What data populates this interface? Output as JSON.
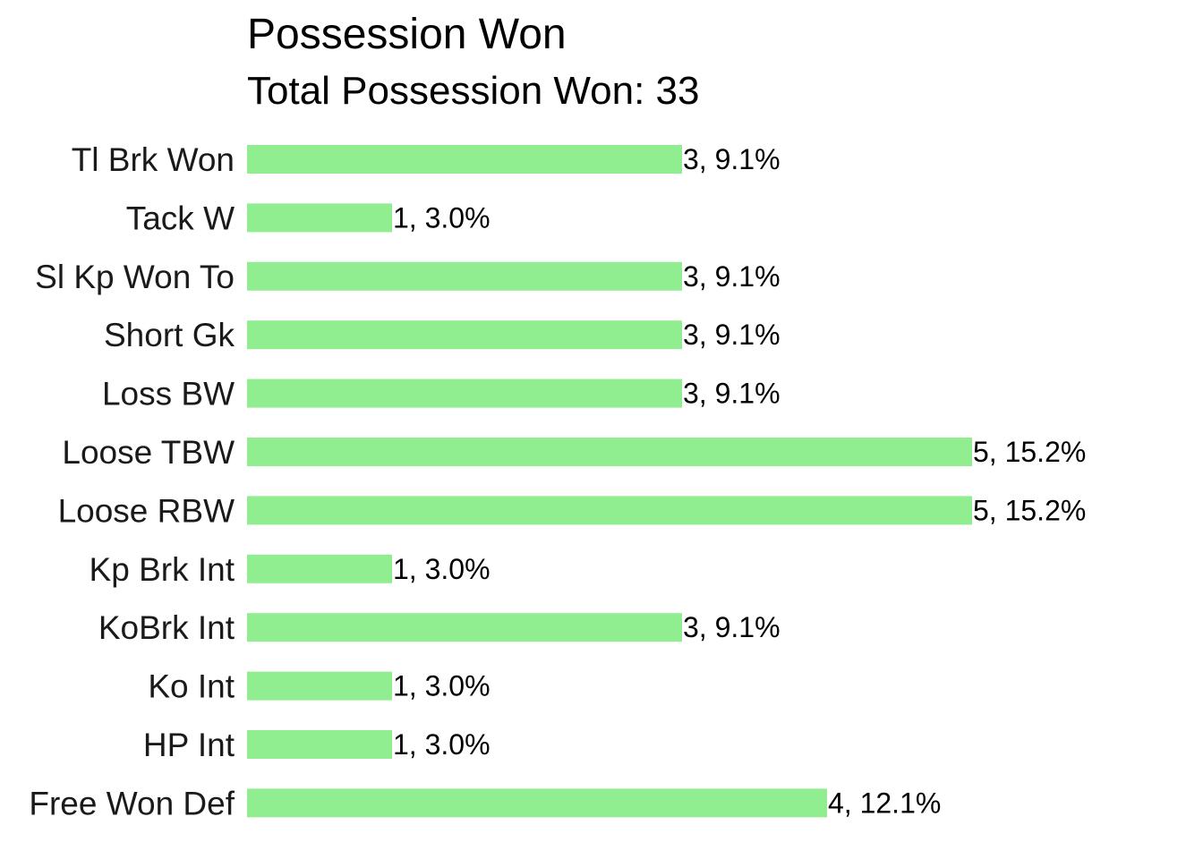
{
  "chart_data": {
    "type": "bar",
    "orientation": "horizontal",
    "title": "Possession Won",
    "subtitle": "Total Possession Won: 33",
    "xlabel": "",
    "ylabel": "",
    "grid": false,
    "legend": "none",
    "bar_color": "#90EE90",
    "xlim": [
      0,
      5
    ],
    "categories": [
      "Tl Brk Won",
      "Tack W",
      "Sl Kp Won To",
      "Short Gk",
      "Loss BW",
      "Loose TBW",
      "Loose RBW",
      "Kp Brk Int",
      "KoBrk Int",
      "Ko Int",
      "HP Int",
      "Free Won Def"
    ],
    "values": [
      3,
      1,
      3,
      3,
      3,
      5,
      5,
      1,
      3,
      1,
      1,
      4
    ],
    "labels": [
      "3, 9.1%",
      "1, 3.0%",
      "3, 9.1%",
      "3, 9.1%",
      "3, 9.1%",
      "5, 15.2%",
      "5, 15.2%",
      "1, 3.0%",
      "3, 9.1%",
      "1, 3.0%",
      "1, 3.0%",
      "4, 12.1%"
    ]
  }
}
